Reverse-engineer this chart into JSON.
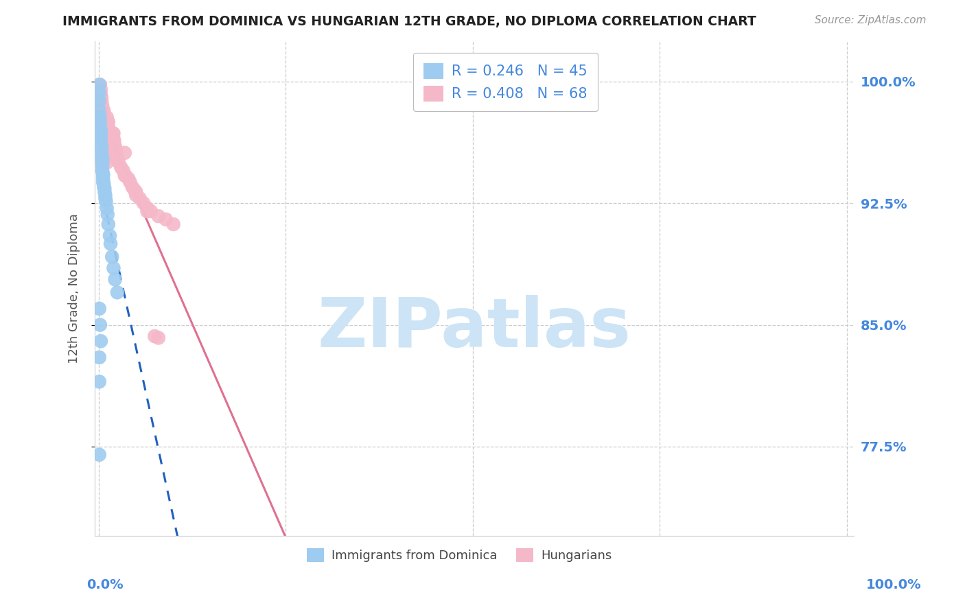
{
  "title": "IMMIGRANTS FROM DOMINICA VS HUNGARIAN 12TH GRADE, NO DIPLOMA CORRELATION CHART",
  "source": "Source: ZipAtlas.com",
  "ylabel": "12th Grade, No Diploma",
  "ylabel_ticks": [
    "100.0%",
    "92.5%",
    "85.0%",
    "77.5%"
  ],
  "ylabel_tick_vals": [
    1.0,
    0.925,
    0.85,
    0.775
  ],
  "xlim": [
    0.0,
    1.0
  ],
  "ylim": [
    0.72,
    1.025
  ],
  "legend_r1_text": "R = 0.246   N = 45",
  "legend_r2_text": "R = 0.408   N = 68",
  "dominica_color": "#9ecbf0",
  "hungarian_color": "#f5b8c8",
  "dominica_line_color": "#2060c0",
  "hungarian_line_color": "#e07090",
  "background_color": "#ffffff",
  "grid_color": "#cccccc",
  "title_color": "#222222",
  "source_color": "#999999",
  "tick_label_color": "#4488dd",
  "watermark_text": "ZIPatlas",
  "watermark_color": "#cce4f6",
  "dom_intercept": 0.945,
  "dom_slope": 0.3,
  "hun_intercept": 0.92,
  "hun_slope": 0.72,
  "dom_x": [
    0.001,
    0.001,
    0.001,
    0.001,
    0.002,
    0.002,
    0.002,
    0.003,
    0.003,
    0.003,
    0.003,
    0.004,
    0.004,
    0.004,
    0.005,
    0.005,
    0.005,
    0.005,
    0.005,
    0.006,
    0.006,
    0.006,
    0.006,
    0.007,
    0.007,
    0.008,
    0.008,
    0.009,
    0.009,
    0.01,
    0.011,
    0.012,
    0.013,
    0.015,
    0.016,
    0.018,
    0.02,
    0.022,
    0.025,
    0.001,
    0.002,
    0.003,
    0.001,
    0.001,
    0.001
  ],
  "dom_y": [
    0.998,
    0.993,
    0.988,
    0.982,
    0.978,
    0.975,
    0.972,
    0.97,
    0.967,
    0.965,
    0.963,
    0.96,
    0.958,
    0.955,
    0.953,
    0.952,
    0.95,
    0.948,
    0.945,
    0.943,
    0.942,
    0.94,
    0.938,
    0.937,
    0.935,
    0.934,
    0.932,
    0.93,
    0.928,
    0.926,
    0.922,
    0.918,
    0.912,
    0.905,
    0.9,
    0.892,
    0.885,
    0.878,
    0.87,
    0.86,
    0.85,
    0.84,
    0.83,
    0.815,
    0.77
  ],
  "hun_x": [
    0.002,
    0.003,
    0.003,
    0.004,
    0.004,
    0.005,
    0.005,
    0.006,
    0.006,
    0.006,
    0.007,
    0.007,
    0.008,
    0.008,
    0.008,
    0.009,
    0.009,
    0.01,
    0.01,
    0.011,
    0.011,
    0.012,
    0.013,
    0.014,
    0.015,
    0.015,
    0.016,
    0.017,
    0.018,
    0.019,
    0.02,
    0.021,
    0.022,
    0.023,
    0.024,
    0.025,
    0.027,
    0.03,
    0.033,
    0.036,
    0.04,
    0.042,
    0.045,
    0.048,
    0.05,
    0.055,
    0.06,
    0.065,
    0.07,
    0.08,
    0.09,
    0.1,
    0.003,
    0.005,
    0.008,
    0.012,
    0.018,
    0.025,
    0.035,
    0.05,
    0.065,
    0.08,
    0.004,
    0.007,
    0.013,
    0.02,
    0.035,
    0.075
  ],
  "hun_y": [
    0.998,
    0.995,
    0.992,
    0.99,
    0.987,
    0.985,
    0.982,
    0.98,
    0.978,
    0.975,
    0.973,
    0.97,
    0.968,
    0.965,
    0.963,
    0.96,
    0.958,
    0.955,
    0.953,
    0.95,
    0.978,
    0.975,
    0.972,
    0.97,
    0.967,
    0.965,
    0.963,
    0.96,
    0.958,
    0.968,
    0.965,
    0.963,
    0.96,
    0.958,
    0.955,
    0.952,
    0.95,
    0.947,
    0.945,
    0.942,
    0.94,
    0.938,
    0.935,
    0.933,
    0.93,
    0.928,
    0.925,
    0.922,
    0.92,
    0.917,
    0.915,
    0.912,
    0.985,
    0.98,
    0.975,
    0.97,
    0.96,
    0.952,
    0.942,
    0.932,
    0.92,
    0.842,
    0.988,
    0.982,
    0.975,
    0.968,
    0.956,
    0.843
  ]
}
